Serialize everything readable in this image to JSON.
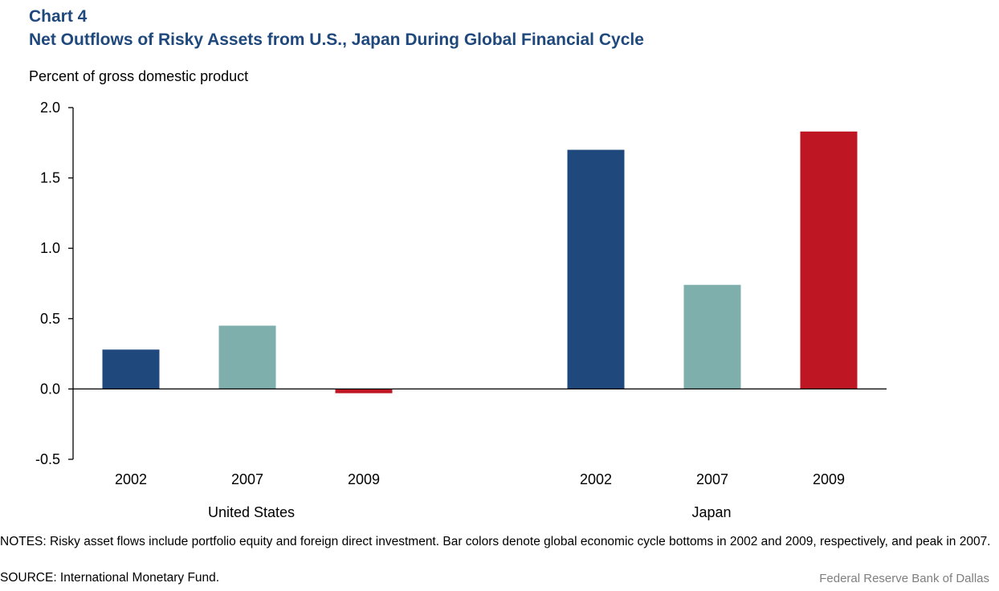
{
  "header": {
    "chart_number": "Chart 4",
    "title": "Net Outflows of Risky Assets from U.S., Japan During Global Financial Cycle",
    "unit_label": "Percent of gross domestic product"
  },
  "colors": {
    "2002": "#1f497d",
    "2007": "#7fafac",
    "2009": "#be1622",
    "title": "#1f497d"
  },
  "chart_data": {
    "type": "bar",
    "title": "Net Outflows of Risky Assets from U.S., Japan During Global Financial Cycle",
    "ylabel": "Percent of gross domestic product",
    "ylim": [
      -0.5,
      2.0
    ],
    "yticks": [
      "2.0",
      "1.5",
      "1.0",
      "0.5",
      "0.0",
      "-0.5"
    ],
    "grid": false,
    "groups": [
      {
        "name": "United States",
        "categories": [
          "2002",
          "2007",
          "2009"
        ],
        "values": [
          0.28,
          0.45,
          -0.03
        ]
      },
      {
        "name": "Japan",
        "categories": [
          "2002",
          "2007",
          "2009"
        ],
        "values": [
          1.7,
          0.74,
          1.83
        ]
      }
    ]
  },
  "footer": {
    "notes": "NOTES: Risky asset flows include portfolio equity and foreign direct investment. Bar colors denote global economic cycle bottoms in 2002 and 2009, respectively, and peak in 2007.",
    "source": "SOURCE: International Monetary Fund.",
    "credit": "Federal Reserve Bank of Dallas"
  }
}
